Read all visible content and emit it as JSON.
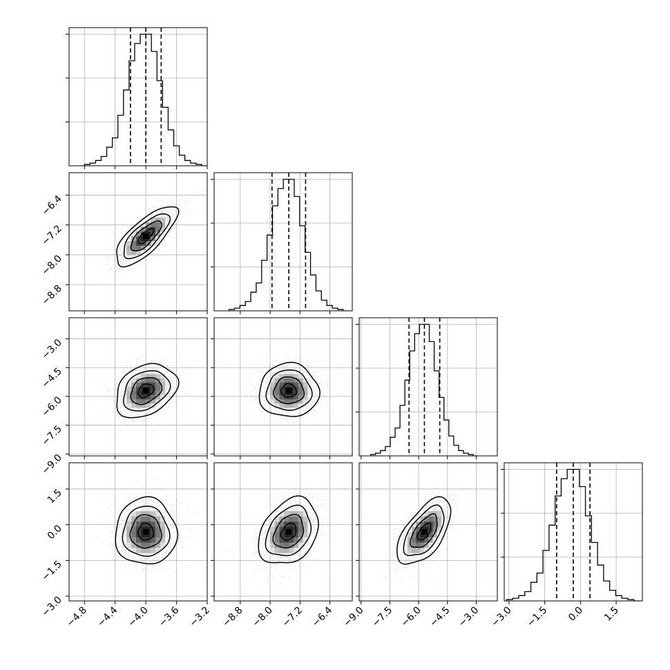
{
  "chart_data": {
    "type": "corner",
    "dims": [
      {
        "range": [
          -5.0,
          -3.2
        ],
        "ticks": [
          -4.8,
          -4.4,
          -4.0,
          -3.6,
          -3.2
        ],
        "tick_labels": [
          "−4.8",
          "−4.4",
          "−4.0",
          "−3.6",
          "−3.2"
        ],
        "mean": -4.0,
        "sd": 0.2,
        "quantiles": [
          -4.2,
          -4.0,
          -3.8
        ]
      },
      {
        "range": [
          -9.5,
          -5.8
        ],
        "ticks": [
          -8.8,
          -8.0,
          -7.2,
          -6.4
        ],
        "tick_labels": [
          "−8.8",
          "−8.0",
          "−7.2",
          "−6.4"
        ],
        "mean": -7.5,
        "sd": 0.4,
        "quantiles": [
          -7.95,
          -7.5,
          -7.05
        ]
      },
      {
        "range": [
          -9.1,
          -1.9
        ],
        "ticks": [
          -9.0,
          -7.5,
          -6.0,
          -4.5,
          -3.0
        ],
        "tick_labels": [
          "−9.0",
          "−7.5",
          "−6.0",
          "−4.5",
          "−3.0"
        ],
        "mean": -5.7,
        "sd": 0.7,
        "quantiles": [
          -6.5,
          -5.7,
          -4.9
        ]
      },
      {
        "range": [
          -3.2,
          2.6
        ],
        "ticks": [
          -3.0,
          -1.5,
          0.0,
          1.5
        ],
        "tick_labels": [
          "−3.0",
          "−1.5",
          "0.0",
          "1.5"
        ],
        "mean": -0.3,
        "sd": 0.7,
        "quantiles": [
          -1.0,
          -0.3,
          0.4
        ]
      }
    ],
    "correlations": [
      [
        0,
        1,
        0.75
      ],
      [
        0,
        2,
        0.3
      ],
      [
        0,
        3,
        0.0
      ],
      [
        1,
        2,
        0.0
      ],
      [
        1,
        3,
        0.3
      ],
      [
        2,
        3,
        0.6
      ]
    ],
    "histograms": [
      [
        0.01,
        0.02,
        0.04,
        0.07,
        0.14,
        0.21,
        0.38,
        0.57,
        0.79,
        0.92,
        0.99,
        0.99,
        0.86,
        0.64,
        0.44,
        0.27,
        0.15,
        0.08,
        0.04,
        0.02,
        0.01,
        0.0
      ],
      [
        0.01,
        0.02,
        0.04,
        0.07,
        0.14,
        0.21,
        0.38,
        0.57,
        0.79,
        0.92,
        0.99,
        0.99,
        0.86,
        0.64,
        0.44,
        0.27,
        0.15,
        0.08,
        0.04,
        0.02,
        0.01,
        0.0
      ],
      [
        0.01,
        0.02,
        0.04,
        0.07,
        0.14,
        0.21,
        0.38,
        0.57,
        0.79,
        0.92,
        0.99,
        0.99,
        0.86,
        0.64,
        0.44,
        0.27,
        0.15,
        0.08,
        0.04,
        0.02,
        0.01,
        0.0
      ],
      [
        0.01,
        0.02,
        0.04,
        0.07,
        0.14,
        0.21,
        0.38,
        0.57,
        0.79,
        0.92,
        0.99,
        0.99,
        0.86,
        0.64,
        0.44,
        0.27,
        0.15,
        0.08,
        0.04,
        0.02,
        0.01,
        0.0
      ]
    ],
    "contour_levels_sigma": [
      0.5,
      1.0,
      1.5,
      2.0
    ],
    "grid": true
  }
}
